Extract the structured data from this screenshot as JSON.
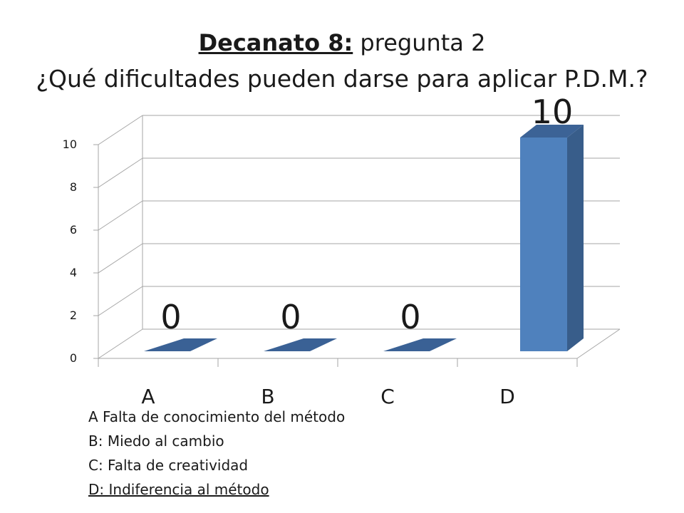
{
  "title": {
    "bold_part": "Decanato 8:",
    "rest": " pregunta 2",
    "line2": "¿Qué dificultades pueden darse para aplicar P.D.M.?"
  },
  "chart_data": {
    "type": "bar",
    "style": "3d-column",
    "categories": [
      "A",
      "B",
      "C",
      "D"
    ],
    "values": [
      0,
      0,
      0,
      10
    ],
    "data_labels": [
      "0",
      "0",
      "0",
      "10"
    ],
    "ylim": [
      0,
      10
    ],
    "yticks": [
      "0",
      "2",
      "4",
      "6",
      "8",
      "10"
    ],
    "grid": true,
    "legend": "none"
  },
  "key": [
    "A Falta de conocimiento del método",
    "B: Miedo al cambio",
    "C: Falta de creatividad",
    "D: Indiferencia  al método"
  ],
  "colors": {
    "bar_front": "#4F81BD",
    "bar_side": "#385D8A",
    "bar_top": "#3C6396",
    "flat_bar": "#3A6195",
    "grid": "#A6A6A6",
    "text": "#1a1a1a"
  }
}
